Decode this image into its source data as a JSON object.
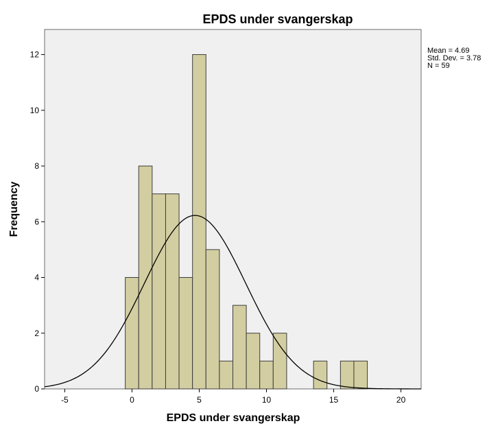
{
  "chart_data": {
    "type": "bar",
    "title": "EPDS under svangerskap",
    "xlabel": "EPDS under svangerskap",
    "ylabel": "Frequency",
    "xlim": [
      -6.5,
      21.5
    ],
    "ylim": [
      0,
      12.9
    ],
    "x_ticks": [
      -5,
      0,
      5,
      10,
      15,
      20
    ],
    "y_ticks": [
      0,
      2,
      4,
      6,
      8,
      10,
      12
    ],
    "bins": [
      {
        "x0": -0.5,
        "x1": 0.5,
        "count": 4
      },
      {
        "x0": 0.5,
        "x1": 1.5,
        "count": 8
      },
      {
        "x0": 1.5,
        "x1": 2.5,
        "count": 7
      },
      {
        "x0": 2.5,
        "x1": 3.5,
        "count": 7
      },
      {
        "x0": 3.5,
        "x1": 4.5,
        "count": 4
      },
      {
        "x0": 4.5,
        "x1": 5.5,
        "count": 12
      },
      {
        "x0": 5.5,
        "x1": 6.5,
        "count": 5
      },
      {
        "x0": 6.5,
        "x1": 7.5,
        "count": 1
      },
      {
        "x0": 7.5,
        "x1": 8.5,
        "count": 3
      },
      {
        "x0": 8.5,
        "x1": 9.5,
        "count": 2
      },
      {
        "x0": 9.5,
        "x1": 10.5,
        "count": 1
      },
      {
        "x0": 10.5,
        "x1": 11.5,
        "count": 2
      },
      {
        "x0": 13.5,
        "x1": 14.5,
        "count": 1
      },
      {
        "x0": 15.5,
        "x1": 16.5,
        "count": 1
      },
      {
        "x0": 16.5,
        "x1": 17.5,
        "count": 1
      }
    ],
    "normal_curve": {
      "mean": 4.69,
      "sd": 3.78,
      "n": 59,
      "bin_width": 1
    },
    "stats_text": [
      "Mean = 4.69",
      "Std. Dev. = 3.78",
      "N = 59"
    ],
    "colors": {
      "bar_fill": "#d3cea1",
      "bar_stroke": "#3c3c3c",
      "plot_background": "#f0f0f0",
      "curve": "#000000",
      "frame": "#6b6b6b"
    },
    "grid": false,
    "legend": "none"
  }
}
